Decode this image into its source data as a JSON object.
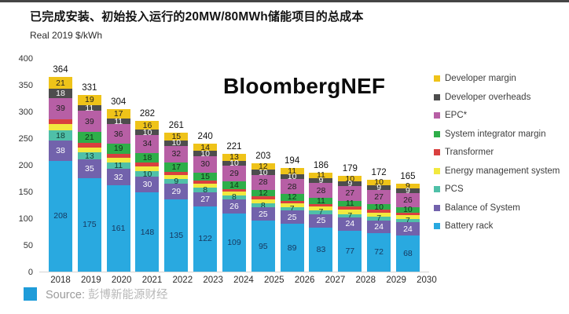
{
  "page": {
    "title_prefix": "已完成安装、初始投入运行的",
    "title_bold": "20MW/80MWh",
    "title_suffix": "储能项目的总成本",
    "unit_label": "Real 2019 $/kWh",
    "watermark": "BloombergNEF",
    "source_label": "Source:",
    "source_text": "彭博新能源财经",
    "source_icon": "blue-square",
    "accent_color": "#1f9cd9"
  },
  "chart_data": {
    "type": "bar",
    "stacked": true,
    "title": "已完成安装、初始投入运行的20MW/80MWh储能项目的总成本",
    "ylabel": "Real 2019 $/kWh",
    "xlabel": "",
    "ylim": [
      0,
      400
    ],
    "yticks": [
      400,
      350,
      300,
      250,
      200,
      150,
      100,
      50,
      0
    ],
    "grid": false,
    "legend_position": "right",
    "categories": [
      "2018",
      "2019",
      "2020",
      "2021",
      "2022",
      "2023",
      "2024",
      "2025",
      "2026",
      "2027",
      "2028",
      "2029",
      "2030"
    ],
    "totals": [
      364,
      331,
      304,
      282,
      261,
      240,
      221,
      203,
      194,
      186,
      179,
      172,
      165
    ],
    "series": [
      {
        "name": "Developer margin",
        "color": "#efc319",
        "label_color": "#222222",
        "show_labels": true,
        "values": [
          21,
          19,
          17,
          16,
          15,
          14,
          13,
          12,
          11,
          11,
          10,
          10,
          9
        ]
      },
      {
        "name": "Developer overheads",
        "color": "#4d4d4d",
        "label_color": "#ffffff",
        "show_labels": true,
        "values": [
          18,
          11,
          11,
          10,
          10,
          10,
          10,
          10,
          10,
          9,
          9,
          9,
          9
        ]
      },
      {
        "name": "EPC*",
        "color": "#b75fa5",
        "label_color": "#222222",
        "show_labels": true,
        "values": [
          39,
          39,
          36,
          34,
          32,
          30,
          29,
          28,
          28,
          28,
          27,
          27,
          26
        ]
      },
      {
        "name": "System integrator margin",
        "color": "#2eae49",
        "label_color": "#11301a",
        "show_labels": true,
        "values": [
          0,
          21,
          19,
          18,
          17,
          15,
          14,
          12,
          12,
          11,
          11,
          10,
          10
        ]
      },
      {
        "name": "Transformer",
        "color": "#d9403f",
        "label_color": "#ffffff",
        "show_labels": false,
        "values": [
          10,
          8,
          8,
          7,
          6,
          6,
          5,
          6,
          5,
          5,
          6,
          6,
          5
        ]
      },
      {
        "name": "Energy management system",
        "color": "#f2e93f",
        "label_color": "#333333",
        "show_labels": false,
        "values": [
          12,
          10,
          9,
          9,
          8,
          8,
          7,
          7,
          7,
          7,
          8,
          7,
          7
        ]
      },
      {
        "name": "PCS",
        "color": "#4fc0a8",
        "label_color": "#123c33",
        "show_labels": true,
        "values": [
          18,
          13,
          11,
          10,
          9,
          8,
          8,
          8,
          7,
          7,
          7,
          7,
          7
        ]
      },
      {
        "name": "Balance of System",
        "color": "#7262ac",
        "label_color": "#ffffff",
        "show_labels": true,
        "values": [
          38,
          35,
          32,
          30,
          29,
          27,
          26,
          25,
          25,
          25,
          24,
          24,
          24
        ]
      },
      {
        "name": "Battery rack",
        "color": "#29a9e0",
        "label_color": "#17375e",
        "show_labels": true,
        "values": [
          208,
          175,
          161,
          148,
          135,
          122,
          109,
          95,
          89,
          83,
          77,
          72,
          68
        ]
      }
    ]
  }
}
